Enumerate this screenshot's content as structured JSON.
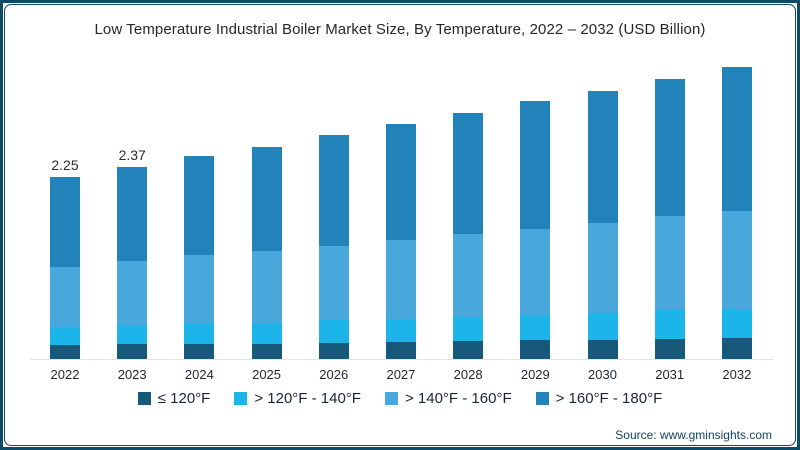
{
  "title": "Low Temperature Industrial Boiler Market Size, By Temperature, 2022 – 2032 (USD Billion)",
  "source": "Source: www.gminsights.com",
  "colors": {
    "frame": "#0d4b66",
    "axis_line": "#e3e3e3",
    "title_text": "#26262c",
    "source_text": "#15425f"
  },
  "chart_data": {
    "type": "bar",
    "stacked": true,
    "title": "Low Temperature Industrial Boiler Market Size, By Temperature, 2022 – 2032 (USD Billion)",
    "unit": "USD Billion",
    "categories": [
      "2022",
      "2023",
      "2024",
      "2025",
      "2026",
      "2027",
      "2028",
      "2029",
      "2030",
      "2031",
      "2032"
    ],
    "series": [
      {
        "name": "≤ 120°F",
        "color": "#17597b",
        "values": [
          0.17,
          0.18,
          0.19,
          0.19,
          0.2,
          0.21,
          0.22,
          0.23,
          0.24,
          0.25,
          0.26
        ]
      },
      {
        "name": "> 120°F - 140°F",
        "color": "#1cb5ea",
        "values": [
          0.22,
          0.24,
          0.25,
          0.26,
          0.28,
          0.29,
          0.3,
          0.32,
          0.33,
          0.35,
          0.36
        ]
      },
      {
        "name": "> 140°F - 160°F",
        "color": "#48a8dc",
        "values": [
          0.75,
          0.79,
          0.84,
          0.88,
          0.92,
          0.97,
          1.02,
          1.06,
          1.11,
          1.16,
          1.21
        ]
      },
      {
        "name": "> 160°F - 180°F",
        "color": "#2282ba",
        "values": [
          1.11,
          1.16,
          1.23,
          1.29,
          1.36,
          1.43,
          1.5,
          1.57,
          1.63,
          1.7,
          1.77
        ]
      }
    ],
    "totals": [
      2.25,
      2.37,
      2.51,
      2.62,
      2.76,
      2.9,
      3.04,
      3.18,
      3.31,
      3.46,
      3.6
    ],
    "bar_labels": [
      "2.25",
      "2.37",
      "",
      "",
      "",
      "",
      "",
      "",
      "",
      "",
      ""
    ],
    "xlabel": "",
    "ylabel": "",
    "ylim": [
      0,
      3.7
    ],
    "grid": false,
    "y_axis_visible": false,
    "legend_position": "bottom"
  }
}
